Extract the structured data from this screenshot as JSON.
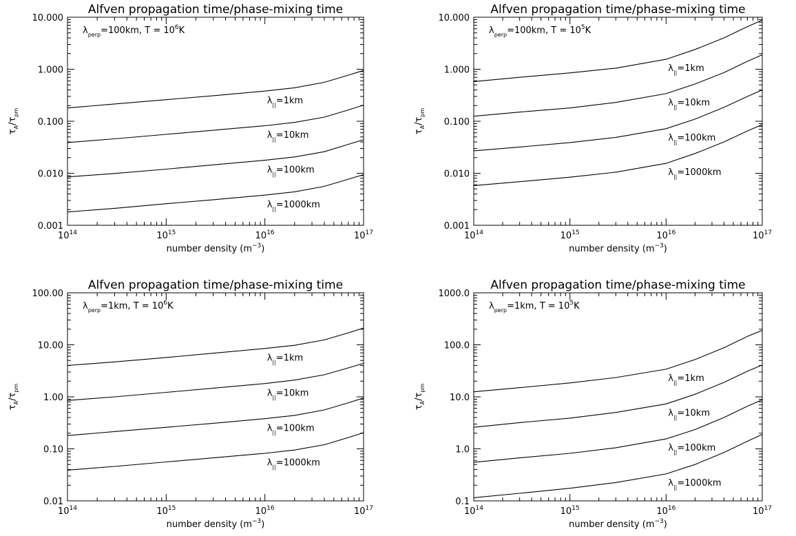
{
  "chart_data": [
    {
      "type": "line",
      "title": "Alfven propagation time/phase-mixing time",
      "annotation": {
        "lambda_symbol": "λ",
        "subscript": "perp",
        "text": "=100km, T = 10",
        "exp": "6",
        "unit": "K"
      },
      "xlabel": {
        "text": "number density (m",
        "exp": "−3",
        "close": ")"
      },
      "ylabel": {
        "tau": "τ",
        "sub1": "A",
        "slash": "/",
        "sub2": "pm"
      },
      "xscale": "log",
      "yscale": "log",
      "xlim": [
        100000000000000.0,
        1e+17
      ],
      "ylim": [
        0.001,
        10
      ],
      "xticks": [
        {
          "value": 100000000000000.0,
          "base": "10",
          "exp": "14"
        },
        {
          "value": 1000000000000000.0,
          "base": "10",
          "exp": "15"
        },
        {
          "value": 1e+16,
          "base": "10",
          "exp": "16"
        },
        {
          "value": 1e+17,
          "base": "10",
          "exp": "17"
        }
      ],
      "yticks": [
        {
          "value": 0.001,
          "label": "0.001"
        },
        {
          "value": 0.01,
          "label": "0.010"
        },
        {
          "value": 0.1,
          "label": "0.100"
        },
        {
          "value": 1,
          "label": "1.000"
        },
        {
          "value": 10,
          "label": "10.000"
        }
      ],
      "series": [
        {
          "label": "=1km",
          "x": [
            100000000000000.0,
            300000000000000.0,
            1000000000000000.0,
            3000000000000000.0,
            1e+16,
            2e+16,
            4e+16,
            7e+16,
            1e+17
          ],
          "y": [
            0.18,
            0.215,
            0.26,
            0.31,
            0.38,
            0.44,
            0.56,
            0.77,
            0.95
          ]
        },
        {
          "label": "=10km",
          "x": [
            100000000000000.0,
            300000000000000.0,
            1000000000000000.0,
            3000000000000000.0,
            1e+16,
            2e+16,
            4e+16,
            7e+16,
            1e+17
          ],
          "y": [
            0.039,
            0.046,
            0.056,
            0.067,
            0.082,
            0.095,
            0.12,
            0.165,
            0.205
          ]
        },
        {
          "label": "=100km",
          "x": [
            100000000000000.0,
            300000000000000.0,
            1000000000000000.0,
            3000000000000000.0,
            1e+16,
            2e+16,
            4e+16,
            7e+16,
            1e+17
          ],
          "y": [
            0.0085,
            0.0099,
            0.012,
            0.0145,
            0.0178,
            0.0206,
            0.026,
            0.036,
            0.044
          ]
        },
        {
          "label": "=1000km",
          "x": [
            100000000000000.0,
            300000000000000.0,
            1000000000000000.0,
            3000000000000000.0,
            1e+16,
            2e+16,
            4e+16,
            7e+16,
            1e+17
          ],
          "y": [
            0.0018,
            0.00212,
            0.0026,
            0.0031,
            0.0038,
            0.0044,
            0.0056,
            0.0077,
            0.0094
          ]
        }
      ]
    },
    {
      "type": "line",
      "title": "Alfven propagation time/phase-mixing time",
      "annotation": {
        "lambda_symbol": "λ",
        "subscript": "perp",
        "text": "=100km, T = 10",
        "exp": "5",
        "unit": "K"
      },
      "xlabel": {
        "text": "number density (m",
        "exp": "−3",
        "close": ")"
      },
      "ylabel": {
        "tau": "τ",
        "sub1": "A",
        "slash": "/",
        "sub2": "pm"
      },
      "xscale": "log",
      "yscale": "log",
      "xlim": [
        100000000000000.0,
        1e+17
      ],
      "ylim": [
        0.001,
        10
      ],
      "xticks": [
        {
          "value": 100000000000000.0,
          "base": "10",
          "exp": "14"
        },
        {
          "value": 1000000000000000.0,
          "base": "10",
          "exp": "15"
        },
        {
          "value": 1e+16,
          "base": "10",
          "exp": "16"
        },
        {
          "value": 1e+17,
          "base": "10",
          "exp": "17"
        }
      ],
      "yticks": [
        {
          "value": 0.001,
          "label": "0.001"
        },
        {
          "value": 0.01,
          "label": "0.010"
        },
        {
          "value": 0.1,
          "label": "0.100"
        },
        {
          "value": 1,
          "label": "1.000"
        },
        {
          "value": 10,
          "label": "10.000"
        }
      ],
      "series": [
        {
          "label": "=1km",
          "x": [
            100000000000000.0,
            300000000000000.0,
            1000000000000000.0,
            3000000000000000.0,
            1e+16,
            2e+16,
            4e+16,
            7e+16,
            1e+17
          ],
          "y": [
            0.58,
            0.7,
            0.85,
            1.05,
            1.55,
            2.4,
            4.0,
            6.6,
            8.8
          ]
        },
        {
          "label": "=10km",
          "x": [
            100000000000000.0,
            300000000000000.0,
            1000000000000000.0,
            3000000000000000.0,
            1e+16,
            2e+16,
            4e+16,
            7e+16,
            1e+17
          ],
          "y": [
            0.125,
            0.15,
            0.18,
            0.23,
            0.34,
            0.52,
            0.86,
            1.42,
            1.9
          ]
        },
        {
          "label": "=100km",
          "x": [
            100000000000000.0,
            300000000000000.0,
            1000000000000000.0,
            3000000000000000.0,
            1e+16,
            2e+16,
            4e+16,
            7e+16,
            1e+17
          ],
          "y": [
            0.027,
            0.032,
            0.039,
            0.049,
            0.072,
            0.11,
            0.185,
            0.3,
            0.4
          ]
        },
        {
          "label": "=1000km",
          "x": [
            100000000000000.0,
            300000000000000.0,
            1000000000000000.0,
            3000000000000000.0,
            1e+16,
            2e+16,
            4e+16,
            7e+16,
            1e+17
          ],
          "y": [
            0.0058,
            0.0069,
            0.0084,
            0.0105,
            0.0155,
            0.024,
            0.04,
            0.065,
            0.086
          ]
        }
      ]
    },
    {
      "type": "line",
      "title": "Alfven propagation time/phase-mixing time",
      "annotation": {
        "lambda_symbol": "λ",
        "subscript": "perp",
        "text": "=1km, T = 10",
        "exp": "6",
        "unit": "K"
      },
      "xlabel": {
        "text": "number density (m",
        "exp": "−3",
        "close": ")"
      },
      "ylabel": {
        "tau": "τ",
        "sub1": "A",
        "slash": "/",
        "sub2": "pm"
      },
      "xscale": "log",
      "yscale": "log",
      "xlim": [
        100000000000000.0,
        1e+17
      ],
      "ylim": [
        0.01,
        100
      ],
      "xticks": [
        {
          "value": 100000000000000.0,
          "base": "10",
          "exp": "14"
        },
        {
          "value": 1000000000000000.0,
          "base": "10",
          "exp": "15"
        },
        {
          "value": 1e+16,
          "base": "10",
          "exp": "16"
        },
        {
          "value": 1e+17,
          "base": "10",
          "exp": "17"
        }
      ],
      "yticks": [
        {
          "value": 0.01,
          "label": "0.01"
        },
        {
          "value": 0.1,
          "label": "0.10"
        },
        {
          "value": 1,
          "label": "1.00"
        },
        {
          "value": 10,
          "label": "10.00"
        },
        {
          "value": 100,
          "label": "100.00"
        }
      ],
      "series": [
        {
          "label": "=1km",
          "x": [
            100000000000000.0,
            300000000000000.0,
            1000000000000000.0,
            3000000000000000.0,
            1e+16,
            2e+16,
            4e+16,
            7e+16,
            1e+17
          ],
          "y": [
            4.0,
            4.7,
            5.7,
            6.9,
            8.5,
            9.8,
            12.4,
            17.0,
            21.0
          ]
        },
        {
          "label": "=10km",
          "x": [
            100000000000000.0,
            300000000000000.0,
            1000000000000000.0,
            3000000000000000.0,
            1e+16,
            2e+16,
            4e+16,
            7e+16,
            1e+17
          ],
          "y": [
            0.85,
            1.0,
            1.22,
            1.47,
            1.8,
            2.1,
            2.65,
            3.6,
            4.4
          ]
        },
        {
          "label": "=100km",
          "x": [
            100000000000000.0,
            300000000000000.0,
            1000000000000000.0,
            3000000000000000.0,
            1e+16,
            2e+16,
            4e+16,
            7e+16,
            1e+17
          ],
          "y": [
            0.18,
            0.215,
            0.26,
            0.31,
            0.38,
            0.44,
            0.56,
            0.77,
            0.95
          ]
        },
        {
          "label": "=1000km",
          "x": [
            100000000000000.0,
            300000000000000.0,
            1000000000000000.0,
            3000000000000000.0,
            1e+16,
            2e+16,
            4e+16,
            7e+16,
            1e+17
          ],
          "y": [
            0.039,
            0.046,
            0.056,
            0.067,
            0.082,
            0.095,
            0.12,
            0.165,
            0.205
          ]
        }
      ]
    },
    {
      "type": "line",
      "title": "Alfven propagation time/phase-mixing time",
      "annotation": {
        "lambda_symbol": "λ",
        "subscript": "perp",
        "text": "=1km, T = 10",
        "exp": "5",
        "unit": "K"
      },
      "xlabel": {
        "text": "number density (m",
        "exp": "−3",
        "close": ")"
      },
      "ylabel": {
        "tau": "τ",
        "sub1": "A",
        "slash": "/",
        "sub2": "pm"
      },
      "xscale": "log",
      "yscale": "log",
      "xlim": [
        100000000000000.0,
        1e+17
      ],
      "ylim": [
        0.1,
        1000
      ],
      "xticks": [
        {
          "value": 100000000000000.0,
          "base": "10",
          "exp": "14"
        },
        {
          "value": 1000000000000000.0,
          "base": "10",
          "exp": "15"
        },
        {
          "value": 1e+16,
          "base": "10",
          "exp": "16"
        },
        {
          "value": 1e+17,
          "base": "10",
          "exp": "17"
        }
      ],
      "yticks": [
        {
          "value": 0.1,
          "label": "0.1"
        },
        {
          "value": 1,
          "label": "1.0"
        },
        {
          "value": 10,
          "label": "10.0"
        },
        {
          "value": 100,
          "label": "100.0"
        },
        {
          "value": 1000,
          "label": "1000.0"
        }
      ],
      "series": [
        {
          "label": "=1km",
          "x": [
            100000000000000.0,
            300000000000000.0,
            1000000000000000.0,
            3000000000000000.0,
            1e+16,
            2e+16,
            4e+16,
            7e+16,
            1e+17
          ],
          "y": [
            12.5,
            15.0,
            18.5,
            23.5,
            34.0,
            52.0,
            88.0,
            145.0,
            190.0
          ]
        },
        {
          "label": "=10km",
          "x": [
            100000000000000.0,
            300000000000000.0,
            1000000000000000.0,
            3000000000000000.0,
            1e+16,
            2e+16,
            4e+16,
            7e+16,
            1e+17
          ],
          "y": [
            2.6,
            3.2,
            3.9,
            5.0,
            7.3,
            11.2,
            19.0,
            31.0,
            41.0
          ]
        },
        {
          "label": "=100km",
          "x": [
            100000000000000.0,
            300000000000000.0,
            1000000000000000.0,
            3000000000000000.0,
            1e+16,
            2e+16,
            4e+16,
            7e+16,
            1e+17
          ],
          "y": [
            0.55,
            0.67,
            0.82,
            1.05,
            1.55,
            2.35,
            4.0,
            6.6,
            8.8
          ]
        },
        {
          "label": "=1000km",
          "x": [
            100000000000000.0,
            300000000000000.0,
            1000000000000000.0,
            3000000000000000.0,
            1e+16,
            2e+16,
            4e+16,
            7e+16,
            1e+17
          ],
          "y": [
            0.115,
            0.14,
            0.175,
            0.225,
            0.33,
            0.5,
            0.85,
            1.4,
            1.9
          ]
        }
      ]
    }
  ]
}
